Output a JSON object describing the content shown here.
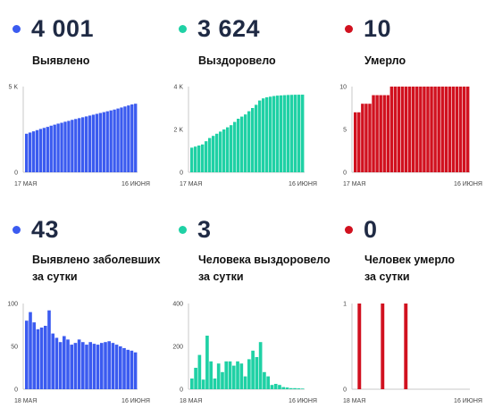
{
  "colors": {
    "blue": "#3b5bf0",
    "teal": "#1fd1a5",
    "red": "#d1111f"
  },
  "panels": [
    {
      "value": "4 001",
      "label_lines": [
        "Выявлено"
      ],
      "color_key": "blue",
      "chart_data": {
        "type": "bar",
        "x_start_label": "17 МАЯ",
        "x_end_label": "16 ИЮНЯ",
        "ylim": [
          0,
          5000
        ],
        "yticks": [
          {
            "v": 0,
            "t": "0"
          },
          {
            "v": 5000,
            "t": "5 K"
          }
        ],
        "values": [
          2250,
          2320,
          2390,
          2460,
          2530,
          2590,
          2650,
          2720,
          2780,
          2840,
          2890,
          2950,
          3000,
          3060,
          3110,
          3160,
          3210,
          3260,
          3310,
          3360,
          3410,
          3460,
          3510,
          3560,
          3610,
          3660,
          3720,
          3780,
          3840,
          3900,
          3960,
          4001
        ]
      }
    },
    {
      "value": "3 624",
      "label_lines": [
        "Выздоровело"
      ],
      "color_key": "teal",
      "chart_data": {
        "type": "bar",
        "x_start_label": "17 МАЯ",
        "x_end_label": "16 ИЮНЯ",
        "ylim": [
          0,
          4000
        ],
        "yticks": [
          {
            "v": 0,
            "t": "0"
          },
          {
            "v": 2000,
            "t": "2 K"
          },
          {
            "v": 4000,
            "t": "4 K"
          }
        ],
        "values": [
          1150,
          1200,
          1250,
          1300,
          1450,
          1600,
          1700,
          1800,
          1900,
          2000,
          2100,
          2200,
          2350,
          2500,
          2600,
          2700,
          2850,
          3000,
          3150,
          3350,
          3450,
          3500,
          3530,
          3560,
          3580,
          3590,
          3600,
          3610,
          3615,
          3620,
          3622,
          3624
        ]
      }
    },
    {
      "value": "10",
      "label_lines": [
        "Умерло"
      ],
      "color_key": "red",
      "chart_data": {
        "type": "bar",
        "x_start_label": "17 МАЯ",
        "x_end_label": "16 ИЮНЯ",
        "ylim": [
          0,
          10
        ],
        "yticks": [
          {
            "v": 0,
            "t": "0"
          },
          {
            "v": 5,
            "t": "5"
          },
          {
            "v": 10,
            "t": "10"
          }
        ],
        "values": [
          7,
          7,
          8,
          8,
          8,
          9,
          9,
          9,
          9,
          9,
          10,
          10,
          10,
          10,
          10,
          10,
          10,
          10,
          10,
          10,
          10,
          10,
          10,
          10,
          10,
          10,
          10,
          10,
          10,
          10,
          10,
          10
        ]
      }
    },
    {
      "value": "43",
      "label_lines": [
        "Выявлено заболевших",
        "за сутки"
      ],
      "color_key": "blue",
      "chart_data": {
        "type": "bar",
        "x_start_label": "18 МАЯ",
        "x_end_label": "16 ИЮНЯ",
        "ylim": [
          0,
          100
        ],
        "yticks": [
          {
            "v": 0,
            "t": "0"
          },
          {
            "v": 50,
            "t": "50"
          },
          {
            "v": 100,
            "t": "100"
          }
        ],
        "values": [
          80,
          90,
          78,
          70,
          72,
          74,
          92,
          65,
          60,
          55,
          62,
          58,
          52,
          54,
          58,
          55,
          52,
          55,
          53,
          52,
          54,
          55,
          56,
          54,
          52,
          50,
          48,
          46,
          45,
          43
        ]
      }
    },
    {
      "value": "3",
      "label_lines": [
        "Человека выздоровело",
        "за сутки"
      ],
      "color_key": "teal",
      "chart_data": {
        "type": "bar",
        "x_start_label": "18 МАЯ",
        "x_end_label": "16 ИЮНЯ",
        "ylim": [
          0,
          400
        ],
        "yticks": [
          {
            "v": 0,
            "t": "0"
          },
          {
            "v": 200,
            "t": "200"
          },
          {
            "v": 400,
            "t": "400"
          }
        ],
        "values": [
          50,
          100,
          160,
          45,
          250,
          130,
          50,
          120,
          80,
          130,
          130,
          110,
          130,
          120,
          60,
          140,
          180,
          150,
          220,
          80,
          60,
          20,
          25,
          20,
          10,
          8,
          5,
          5,
          4,
          3
        ]
      }
    },
    {
      "value": "0",
      "label_lines": [
        "Человек умерло",
        "за сутки"
      ],
      "color_key": "red",
      "chart_data": {
        "type": "bar",
        "x_start_label": "18 МАЯ",
        "x_end_label": "16 ИЮНЯ",
        "ylim": [
          0,
          1
        ],
        "yticks": [
          {
            "v": 0,
            "t": "0"
          },
          {
            "v": 1,
            "t": "1"
          }
        ],
        "values": [
          0,
          1,
          0,
          0,
          0,
          0,
          0,
          1,
          0,
          0,
          0,
          0,
          0,
          1,
          0,
          0,
          0,
          0,
          0,
          0,
          0,
          0,
          0,
          0,
          0,
          0,
          0,
          0,
          0,
          0
        ]
      }
    }
  ]
}
